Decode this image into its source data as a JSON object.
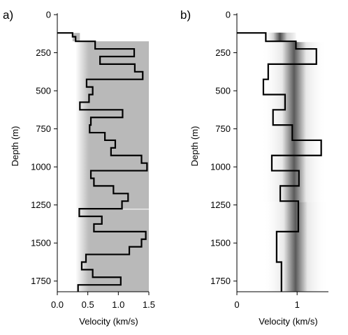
{
  "chart_data": [
    {
      "type": "line",
      "panel_tag": "a)",
      "xlabel": "Velocity (km/s)",
      "ylabel": "Depth (m)",
      "xlim": [
        0,
        1.5
      ],
      "ylim": [
        0,
        1820
      ],
      "y_inverted": true,
      "x_ticks": [
        "0.0",
        "0.5",
        "1.0",
        "1.5"
      ],
      "x_tick_values": [
        0,
        0.5,
        1.0,
        1.5
      ],
      "y_ticks": [
        "0",
        "250",
        "500",
        "750",
        "1000",
        "1250",
        "1500",
        "1750"
      ],
      "y_tick_values": [
        0,
        250,
        500,
        750,
        1000,
        1250,
        1500,
        1750
      ],
      "background_bands": [
        {
          "x_from": 0.3,
          "x_to": 1.5,
          "depth_from": 175,
          "depth_to": 1820,
          "color": "#b9b9b9",
          "gradient_from_x": 0.3,
          "gradient_to_x": 0.52
        },
        {
          "x_from": 0.25,
          "x_to": 0.37,
          "depth_from": 120,
          "depth_to": 175,
          "color": "#b9b9b9"
        }
      ],
      "series": [
        {
          "color": "#000000",
          "profile": [
            {
              "v": 0.0,
              "d": 120
            },
            {
              "v": 0.25,
              "d": 145
            },
            {
              "v": 0.3,
              "d": 175
            },
            {
              "v": 0.62,
              "d": 225
            },
            {
              "v": 1.26,
              "d": 275
            },
            {
              "v": 0.7,
              "d": 325
            },
            {
              "v": 1.27,
              "d": 375
            },
            {
              "v": 1.4,
              "d": 425
            },
            {
              "v": 0.48,
              "d": 475
            },
            {
              "v": 0.58,
              "d": 525
            },
            {
              "v": 0.52,
              "d": 575
            },
            {
              "v": 0.37,
              "d": 625
            },
            {
              "v": 1.07,
              "d": 675
            },
            {
              "v": 0.55,
              "d": 725
            },
            {
              "v": 0.53,
              "d": 775
            },
            {
              "v": 0.78,
              "d": 825
            },
            {
              "v": 0.95,
              "d": 875
            },
            {
              "v": 0.88,
              "d": 925
            },
            {
              "v": 1.38,
              "d": 975
            },
            {
              "v": 1.47,
              "d": 1025
            },
            {
              "v": 0.55,
              "d": 1075
            },
            {
              "v": 0.6,
              "d": 1125
            },
            {
              "v": 0.92,
              "d": 1175
            },
            {
              "v": 1.16,
              "d": 1225
            },
            {
              "v": 1.06,
              "d": 1275
            },
            {
              "v": 0.36,
              "d": 1325
            },
            {
              "v": 0.73,
              "d": 1375
            },
            {
              "v": 0.6,
              "d": 1425
            },
            {
              "v": 1.45,
              "d": 1475
            },
            {
              "v": 1.38,
              "d": 1525
            },
            {
              "v": 1.18,
              "d": 1575
            },
            {
              "v": 0.47,
              "d": 1625
            },
            {
              "v": 0.4,
              "d": 1675
            },
            {
              "v": 0.58,
              "d": 1725
            },
            {
              "v": 1.04,
              "d": 1775
            },
            {
              "v": 0.34,
              "d": 1820
            }
          ]
        }
      ]
    },
    {
      "type": "line",
      "panel_tag": "b)",
      "xlabel": "Velocity (km/s)",
      "ylabel": "Depth (m)",
      "xlim": [
        0,
        1.52
      ],
      "ylim": [
        0,
        1820
      ],
      "y_inverted": true,
      "x_ticks": [
        "0",
        "1"
      ],
      "x_tick_values": [
        0,
        1
      ],
      "y_ticks": [
        "0",
        "250",
        "500",
        "750",
        "1000",
        "1250",
        "1500",
        "1750"
      ],
      "y_tick_values": [
        0,
        250,
        500,
        750,
        1000,
        1250,
        1500,
        1750
      ],
      "background_bands": [
        {
          "shape": "vertical-gaussian",
          "center_x": 0.95,
          "depth_from": 180,
          "depth_to": 1230,
          "color": "#5a5a5a"
        },
        {
          "shape": "vertical-gaussian",
          "center_x": 0.98,
          "depth_from": 1230,
          "depth_to": 1820,
          "color": "#5a5a5a"
        }
      ],
      "series": [
        {
          "color": "#000000",
          "profile": [
            {
              "v": 0.0,
              "d": 120
            },
            {
              "v": 0.48,
              "d": 175
            },
            {
              "v": 0.98,
              "d": 225
            },
            {
              "v": 1.32,
              "d": 325
            },
            {
              "v": 0.52,
              "d": 425
            },
            {
              "v": 0.44,
              "d": 525
            },
            {
              "v": 0.8,
              "d": 625
            },
            {
              "v": 0.6,
              "d": 725
            },
            {
              "v": 0.92,
              "d": 825
            },
            {
              "v": 1.4,
              "d": 925
            },
            {
              "v": 0.58,
              "d": 1025
            },
            {
              "v": 1.03,
              "d": 1125
            },
            {
              "v": 0.72,
              "d": 1225
            },
            {
              "v": 1.02,
              "d": 1425
            },
            {
              "v": 0.66,
              "d": 1625
            },
            {
              "v": 0.74,
              "d": 1820
            }
          ]
        }
      ]
    }
  ]
}
